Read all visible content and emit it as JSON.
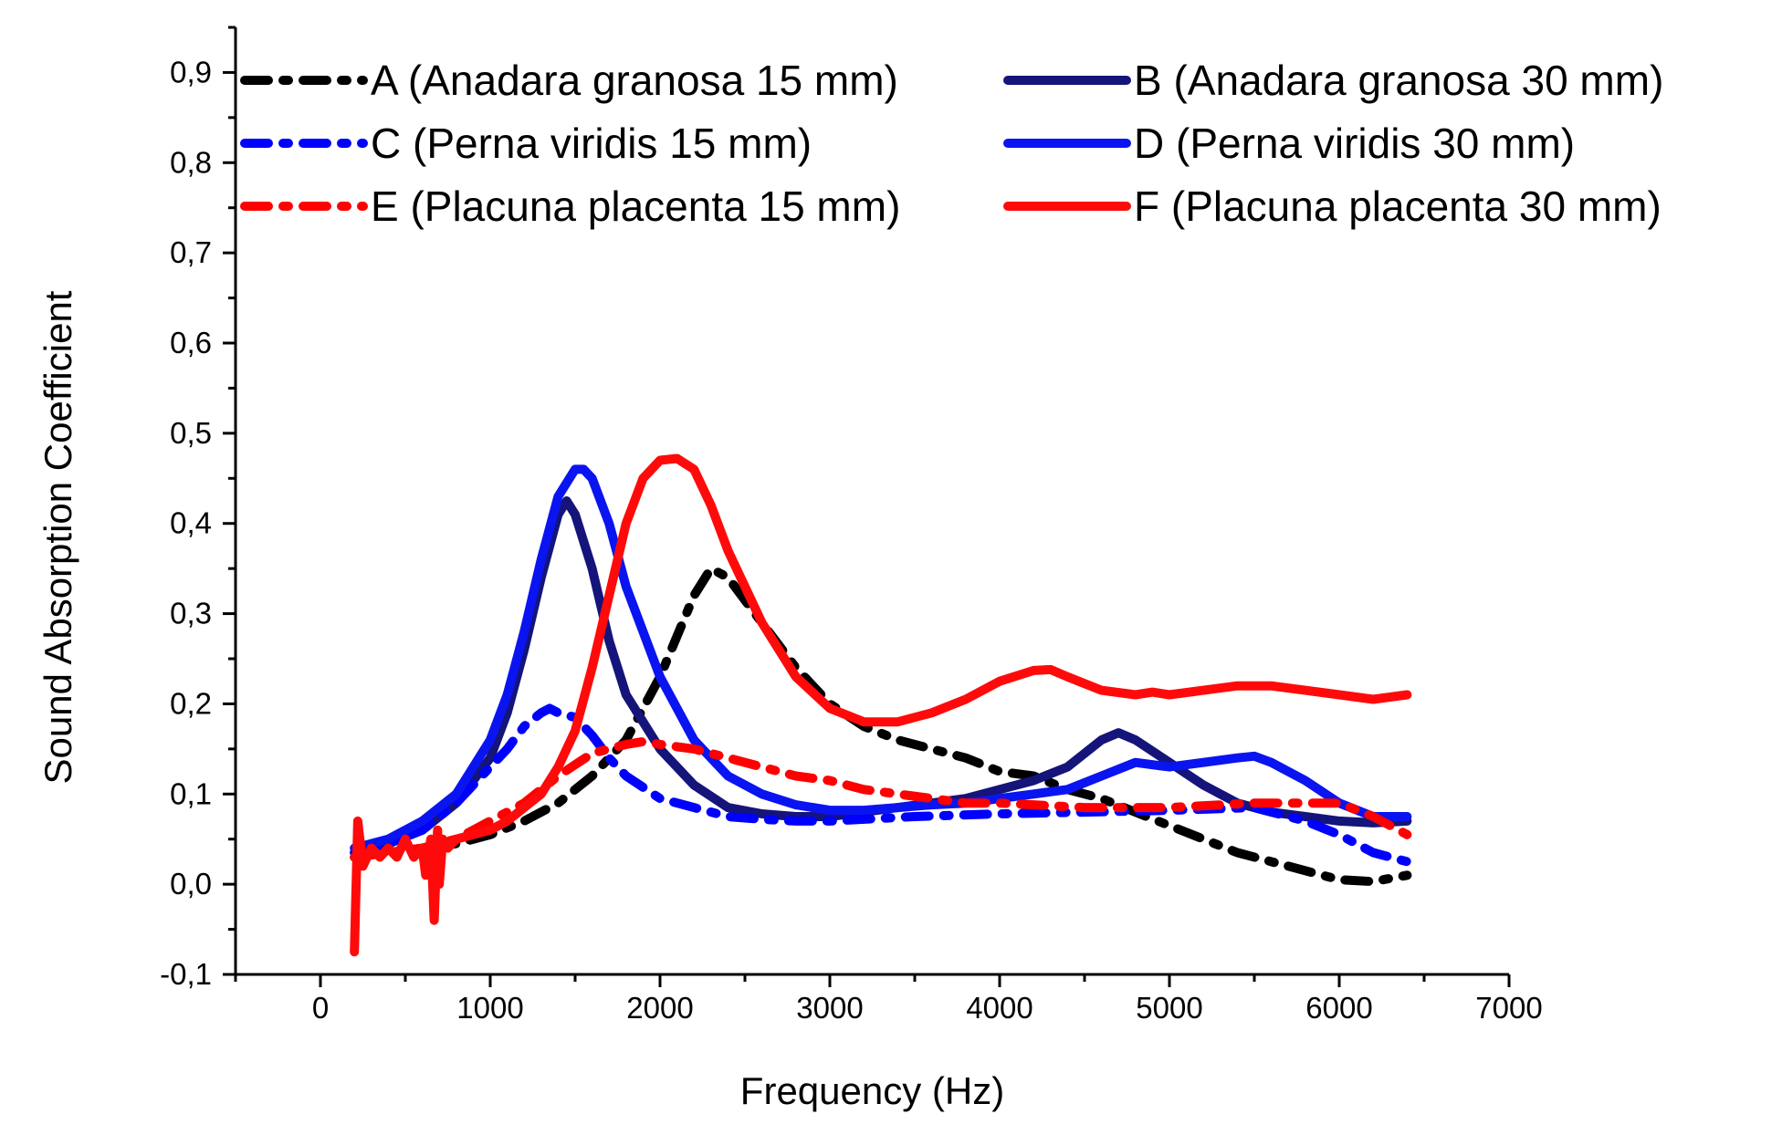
{
  "chart_data": {
    "type": "line",
    "title": "",
    "xlabel": "Frequency (Hz)",
    "ylabel": "Sound Absorption Coefficient",
    "xlim": [
      -500,
      7000
    ],
    "ylim": [
      -0.1,
      0.95
    ],
    "xticks": [
      0,
      1000,
      2000,
      3000,
      4000,
      5000,
      6000,
      7000
    ],
    "xtick_labels": [
      "0",
      "1000",
      "2000",
      "3000",
      "4000",
      "5000",
      "6000",
      "7000"
    ],
    "yticks": [
      -0.1,
      0.0,
      0.1,
      0.2,
      0.3,
      0.4,
      0.5,
      0.6,
      0.7,
      0.8,
      0.9
    ],
    "ytick_labels": [
      "-0,1",
      "0,0",
      "0,1",
      "0,2",
      "0,3",
      "0,4",
      "0,5",
      "0,6",
      "0,7",
      "0,8",
      "0,9"
    ],
    "legend_position": "top",
    "series": [
      {
        "name": "A (Anadara granosa 15 mm)",
        "color": "#000000",
        "style": "dash-dot",
        "x": [
          200,
          400,
          600,
          800,
          1000,
          1200,
          1400,
          1600,
          1800,
          2000,
          2200,
          2300,
          2400,
          2600,
          2800,
          3000,
          3200,
          3400,
          3600,
          3800,
          4000,
          4200,
          4400,
          4600,
          4800,
          5000,
          5200,
          5400,
          5600,
          5800,
          6000,
          6200,
          6400
        ],
        "y": [
          0.03,
          0.035,
          0.04,
          0.045,
          0.055,
          0.07,
          0.09,
          0.12,
          0.16,
          0.23,
          0.32,
          0.35,
          0.34,
          0.29,
          0.24,
          0.2,
          0.175,
          0.16,
          0.15,
          0.14,
          0.125,
          0.12,
          0.105,
          0.095,
          0.08,
          0.065,
          0.05,
          0.035,
          0.025,
          0.015,
          0.005,
          0.003,
          0.01
        ]
      },
      {
        "name": "B (Anadara granosa 30 mm)",
        "color": "#14147a",
        "style": "solid",
        "x": [
          200,
          400,
          600,
          800,
          1000,
          1100,
          1200,
          1300,
          1400,
          1450,
          1500,
          1600,
          1700,
          1800,
          2000,
          2200,
          2400,
          2600,
          2800,
          3000,
          3200,
          3400,
          3600,
          3800,
          4000,
          4200,
          4400,
          4600,
          4700,
          4800,
          5000,
          5200,
          5400,
          5600,
          5800,
          6000,
          6200,
          6400
        ],
        "y": [
          0.035,
          0.045,
          0.06,
          0.09,
          0.14,
          0.19,
          0.26,
          0.34,
          0.41,
          0.425,
          0.41,
          0.35,
          0.27,
          0.21,
          0.15,
          0.11,
          0.085,
          0.078,
          0.075,
          0.075,
          0.08,
          0.085,
          0.09,
          0.095,
          0.105,
          0.115,
          0.13,
          0.16,
          0.168,
          0.16,
          0.135,
          0.11,
          0.09,
          0.08,
          0.075,
          0.07,
          0.068,
          0.07
        ]
      },
      {
        "name": "C (Perna viridis 15 mm)",
        "color": "#0000ff",
        "style": "dash-dot",
        "x": [
          200,
          400,
          600,
          800,
          1000,
          1100,
          1200,
          1300,
          1350,
          1400,
          1500,
          1600,
          1700,
          1800,
          2000,
          2200,
          2400,
          2600,
          2800,
          3000,
          3500,
          4000,
          4500,
          5000,
          5500,
          5800,
          6000,
          6200,
          6400
        ],
        "y": [
          0.035,
          0.045,
          0.06,
          0.09,
          0.13,
          0.15,
          0.175,
          0.19,
          0.195,
          0.19,
          0.185,
          0.165,
          0.14,
          0.12,
          0.095,
          0.085,
          0.075,
          0.072,
          0.07,
          0.07,
          0.075,
          0.078,
          0.08,
          0.082,
          0.085,
          0.07,
          0.055,
          0.035,
          0.025
        ]
      },
      {
        "name": "D (Perna viridis 30 mm)",
        "color": "#0a14f0",
        "style": "solid",
        "x": [
          200,
          400,
          600,
          800,
          1000,
          1100,
          1200,
          1300,
          1400,
          1500,
          1550,
          1600,
          1700,
          1800,
          2000,
          2200,
          2400,
          2600,
          2800,
          3000,
          3200,
          3400,
          3600,
          3800,
          4000,
          4200,
          4400,
          4600,
          4800,
          5000,
          5200,
          5400,
          5500,
          5600,
          5800,
          6000,
          6200,
          6400
        ],
        "y": [
          0.04,
          0.05,
          0.07,
          0.1,
          0.16,
          0.21,
          0.28,
          0.36,
          0.43,
          0.46,
          0.46,
          0.45,
          0.4,
          0.33,
          0.23,
          0.16,
          0.12,
          0.1,
          0.088,
          0.082,
          0.082,
          0.085,
          0.088,
          0.09,
          0.095,
          0.1,
          0.105,
          0.12,
          0.135,
          0.13,
          0.135,
          0.14,
          0.142,
          0.135,
          0.115,
          0.09,
          0.075,
          0.075
        ]
      },
      {
        "name": "E (Placuna placenta 15 mm)",
        "color": "#ff0000",
        "style": "dash-dot",
        "x": [
          200,
          400,
          600,
          800,
          1000,
          1200,
          1400,
          1600,
          1800,
          1900,
          2000,
          2200,
          2400,
          2600,
          2800,
          3000,
          3200,
          3400,
          3600,
          3800,
          4000,
          4500,
          5000,
          5500,
          6000,
          6200,
          6400
        ],
        "y": [
          0.03,
          0.035,
          0.04,
          0.05,
          0.07,
          0.09,
          0.12,
          0.145,
          0.155,
          0.158,
          0.155,
          0.15,
          0.14,
          0.13,
          0.12,
          0.115,
          0.105,
          0.1,
          0.095,
          0.09,
          0.09,
          0.085,
          0.085,
          0.09,
          0.09,
          0.075,
          0.055
        ]
      },
      {
        "name": "F (Placuna placenta 30 mm)",
        "color": "#ff0a0a",
        "style": "solid",
        "x": [
          200,
          220,
          250,
          300,
          350,
          400,
          450,
          500,
          550,
          600,
          620,
          650,
          670,
          690,
          700,
          720,
          750,
          800,
          900,
          1000,
          1100,
          1200,
          1300,
          1400,
          1500,
          1600,
          1700,
          1800,
          1900,
          2000,
          2100,
          2200,
          2300,
          2400,
          2600,
          2800,
          3000,
          3200,
          3400,
          3600,
          3800,
          4000,
          4200,
          4300,
          4400,
          4600,
          4800,
          4900,
          5000,
          5200,
          5400,
          5600,
          5800,
          6000,
          6200,
          6400
        ],
        "y": [
          -0.075,
          0.07,
          0.02,
          0.04,
          0.03,
          0.04,
          0.03,
          0.05,
          0.03,
          0.04,
          0.01,
          0.05,
          -0.04,
          0.06,
          0.0,
          0.05,
          0.04,
          0.05,
          0.055,
          0.06,
          0.07,
          0.085,
          0.1,
          0.13,
          0.17,
          0.24,
          0.32,
          0.4,
          0.45,
          0.47,
          0.472,
          0.46,
          0.42,
          0.37,
          0.29,
          0.23,
          0.195,
          0.18,
          0.18,
          0.19,
          0.205,
          0.225,
          0.237,
          0.238,
          0.23,
          0.215,
          0.21,
          0.213,
          0.21,
          0.215,
          0.22,
          0.22,
          0.215,
          0.21,
          0.205,
          0.21
        ]
      }
    ]
  }
}
